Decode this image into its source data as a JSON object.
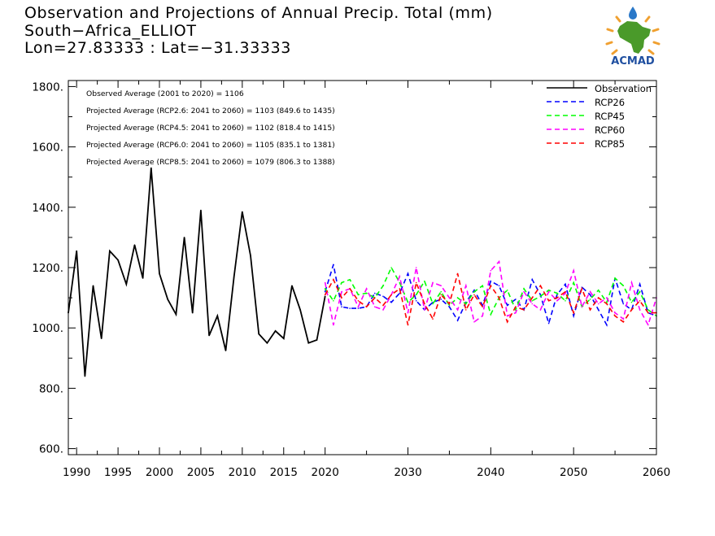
{
  "header": {
    "title_line1": "Observation and Projections of Annual Precip. Total (mm)",
    "title_line2": "South−Africa_ELLIOT",
    "title_line3": "Lon=27.83333 : Lat=−31.33333"
  },
  "logo": {
    "text": "ACMAD"
  },
  "annotations": [
    "Observed Average (2001 to 2020) = 1106",
    "Projected Average (RCP2.6: 2041 to 2060) = 1103 (849.6 to 1435)",
    "Projected Average (RCP4.5: 2041 to 2060) = 1102 (818.4 to 1415)",
    "Projected Average (RCP6.0: 2041 to 2060) = 1105 (835.1 to 1381)",
    "Projected Average (RCP8.5: 2041 to 2060) = 1079 (806.3 to 1388)"
  ],
  "chart_data": {
    "type": "line",
    "xlim": [
      1989,
      2060
    ],
    "ylim": [
      580,
      1820
    ],
    "x_ticks": [
      {
        "value": 1990,
        "label": "1990"
      },
      {
        "value": 1995,
        "label": "1995"
      },
      {
        "value": 2000,
        "label": "2000"
      },
      {
        "value": 2005,
        "label": "2005"
      },
      {
        "value": 2010,
        "label": "2010"
      },
      {
        "value": 2015,
        "label": "2015"
      },
      {
        "value": 2020,
        "label": "2020"
      },
      {
        "value": 2030,
        "label": "2030"
      },
      {
        "value": 2040,
        "label": "2040"
      },
      {
        "value": 2050,
        "label": "2050"
      },
      {
        "value": 2060,
        "label": "2060"
      }
    ],
    "y_ticks": [
      {
        "value": 600,
        "label": "600."
      },
      {
        "value": 800,
        "label": "800."
      },
      {
        "value": 1000,
        "label": "1000."
      },
      {
        "value": 1200,
        "label": "1200."
      },
      {
        "value": 1400,
        "label": "1400."
      },
      {
        "value": 1600,
        "label": "1600."
      },
      {
        "value": 1800,
        "label": "1800."
      }
    ],
    "legend_position": "top-right",
    "series": [
      {
        "name": "Observation",
        "color": "#000000",
        "dashed": false,
        "x": [
          1989,
          1990,
          1991,
          1992,
          1993,
          1994,
          1995,
          1996,
          1997,
          1998,
          1999,
          2000,
          2001,
          2002,
          2003,
          2004,
          2005,
          2006,
          2007,
          2008,
          2009,
          2010,
          2011,
          2012,
          2013,
          2014,
          2015,
          2016,
          2017,
          2018,
          2019,
          2020
        ],
        "y": [
          1050,
          1255,
          840,
          1140,
          965,
          1255,
          1225,
          1145,
          1275,
          1165,
          1530,
          1180,
          1095,
          1045,
          1300,
          1050,
          1390,
          975,
          1040,
          925,
          1170,
          1385,
          1240,
          980,
          950,
          990,
          965,
          1140,
          1060,
          950,
          960,
          1105
        ]
      },
      {
        "name": "RCP26",
        "color": "#0000ff",
        "dashed": true,
        "x": [
          2020,
          2021,
          2022,
          2023,
          2024,
          2025,
          2026,
          2027,
          2028,
          2029,
          2030,
          2031,
          2032,
          2033,
          2034,
          2035,
          2036,
          2037,
          2038,
          2039,
          2040,
          2041,
          2042,
          2043,
          2044,
          2045,
          2046,
          2047,
          2048,
          2049,
          2050,
          2051,
          2052,
          2053,
          2054,
          2055,
          2056,
          2057,
          2058,
          2059,
          2060
        ],
        "y": [
          1120,
          1210,
          1070,
          1065,
          1065,
          1070,
          1115,
          1105,
          1085,
          1115,
          1180,
          1090,
          1060,
          1085,
          1095,
          1070,
          1025,
          1085,
          1125,
          1075,
          1155,
          1140,
          1075,
          1095,
          1060,
          1160,
          1110,
          1015,
          1110,
          1145,
          1040,
          1135,
          1110,
          1060,
          1010,
          1165,
          1080,
          1060,
          1145,
          1050,
          1040
        ]
      },
      {
        "name": "RCP45",
        "color": "#00ff00",
        "dashed": true,
        "x": [
          2020,
          2021,
          2022,
          2023,
          2024,
          2025,
          2026,
          2027,
          2028,
          2029,
          2030,
          2031,
          2032,
          2033,
          2034,
          2035,
          2036,
          2037,
          2038,
          2039,
          2040,
          2041,
          2042,
          2043,
          2044,
          2045,
          2046,
          2047,
          2048,
          2049,
          2050,
          2051,
          2052,
          2053,
          2054,
          2055,
          2056,
          2057,
          2058,
          2059,
          2060
        ],
        "y": [
          1130,
          1090,
          1150,
          1160,
          1110,
          1115,
          1100,
          1140,
          1200,
          1150,
          1085,
          1110,
          1155,
          1080,
          1120,
          1075,
          1100,
          1080,
          1120,
          1140,
          1045,
          1100,
          1125,
          1060,
          1130,
          1090,
          1105,
          1125,
          1115,
          1090,
          1150,
          1070,
          1095,
          1125,
          1085,
          1165,
          1140,
          1085,
          1120,
          1060,
          1040
        ]
      },
      {
        "name": "RCP60",
        "color": "#ff00ff",
        "dashed": true,
        "x": [
          2020,
          2021,
          2022,
          2023,
          2024,
          2025,
          2026,
          2027,
          2028,
          2029,
          2030,
          2031,
          2032,
          2033,
          2034,
          2035,
          2036,
          2037,
          2038,
          2039,
          2040,
          2041,
          2042,
          2043,
          2044,
          2045,
          2046,
          2047,
          2048,
          2049,
          2050,
          2051,
          2052,
          2053,
          2054,
          2055,
          2056,
          2057,
          2058,
          2059,
          2060
        ],
        "y": [
          1150,
          1010,
          1120,
          1130,
          1070,
          1130,
          1070,
          1060,
          1110,
          1170,
          1050,
          1200,
          1060,
          1150,
          1140,
          1100,
          1060,
          1140,
          1020,
          1040,
          1190,
          1220,
          1040,
          1050,
          1120,
          1080,
          1060,
          1120,
          1090,
          1115,
          1190,
          1070,
          1120,
          1080,
          1100,
          1050,
          1030,
          1150,
          1060,
          1010,
          1100
        ]
      },
      {
        "name": "RCP85",
        "color": "#ff0000",
        "dashed": true,
        "x": [
          2020,
          2021,
          2022,
          2023,
          2024,
          2025,
          2026,
          2027,
          2028,
          2029,
          2030,
          2031,
          2032,
          2033,
          2034,
          2035,
          2036,
          2037,
          2038,
          2039,
          2040,
          2041,
          2042,
          2043,
          2044,
          2045,
          2046,
          2047,
          2048,
          2049,
          2050,
          2051,
          2052,
          2053,
          2054,
          2055,
          2056,
          2057,
          2058,
          2059,
          2060
        ],
        "y": [
          1110,
          1160,
          1100,
          1130,
          1090,
          1070,
          1100,
          1075,
          1110,
          1130,
          1010,
          1150,
          1080,
          1030,
          1110,
          1080,
          1180,
          1060,
          1110,
          1070,
          1140,
          1100,
          1020,
          1070,
          1060,
          1100,
          1140,
          1090,
          1100,
          1120,
          1050,
          1130,
          1060,
          1100,
          1080,
          1040,
          1020,
          1060,
          1090,
          1050,
          1050
        ]
      }
    ]
  }
}
